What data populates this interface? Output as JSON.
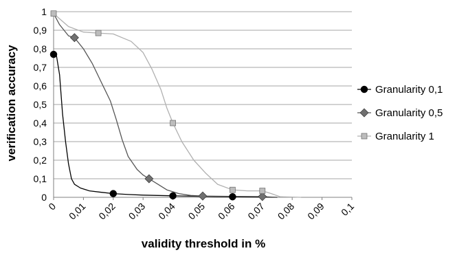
{
  "chart_data": {
    "type": "line",
    "title": "",
    "xlabel": "validity threshold in %",
    "ylabel": "verification accuracy",
    "xlim": [
      0,
      0.1
    ],
    "ylim": [
      0,
      1
    ],
    "x_ticks": [
      "0",
      "0,01",
      "0,02",
      "0,03",
      "0,04",
      "0,05",
      "0,06",
      "0,07",
      "0,08",
      "0,09",
      "0,1"
    ],
    "y_ticks": [
      "0",
      "0,1",
      "0,2",
      "0,3",
      "0,4",
      "0,5",
      "0,6",
      "0,7",
      "0,8",
      "0,9",
      "1"
    ],
    "grid": "horizontal",
    "legend": "right",
    "series": [
      {
        "name": "Granularity 0,1",
        "color": "#000000",
        "marker": "circle",
        "marker_color": "#000000",
        "points": [
          [
            0,
            0.77
          ],
          [
            0.001,
            0.76
          ],
          [
            0.002,
            0.66
          ],
          [
            0.003,
            0.45
          ],
          [
            0.004,
            0.3
          ],
          [
            0.005,
            0.18
          ],
          [
            0.006,
            0.1
          ],
          [
            0.007,
            0.07
          ],
          [
            0.009,
            0.05
          ],
          [
            0.012,
            0.035
          ],
          [
            0.016,
            0.027
          ],
          [
            0.02,
            0.02
          ],
          [
            0.025,
            0.015
          ],
          [
            0.03,
            0.012
          ],
          [
            0.035,
            0.01
          ],
          [
            0.04,
            0.008
          ],
          [
            0.05,
            0.005
          ],
          [
            0.06,
            0.003
          ],
          [
            0.07,
            0.001
          ],
          [
            0.075,
            0
          ]
        ],
        "markers": [
          [
            0,
            0.77
          ],
          [
            0.02,
            0.02
          ],
          [
            0.04,
            0.008
          ],
          [
            0.06,
            0.003
          ]
        ]
      },
      {
        "name": "Granularity 0,5",
        "color": "#555555",
        "marker": "diamond",
        "marker_color": "#707070",
        "points": [
          [
            0,
            0.99
          ],
          [
            0.002,
            0.93
          ],
          [
            0.005,
            0.87
          ],
          [
            0.007,
            0.86
          ],
          [
            0.01,
            0.8
          ],
          [
            0.013,
            0.72
          ],
          [
            0.016,
            0.62
          ],
          [
            0.019,
            0.52
          ],
          [
            0.021,
            0.42
          ],
          [
            0.023,
            0.31
          ],
          [
            0.025,
            0.22
          ],
          [
            0.028,
            0.15
          ],
          [
            0.03,
            0.12
          ],
          [
            0.032,
            0.1
          ],
          [
            0.035,
            0.07
          ],
          [
            0.038,
            0.04
          ],
          [
            0.042,
            0.02
          ],
          [
            0.046,
            0.01
          ],
          [
            0.05,
            0.007
          ],
          [
            0.06,
            0.005
          ],
          [
            0.07,
            0.004
          ],
          [
            0.075,
            0
          ]
        ],
        "markers": [
          [
            0.007,
            0.86
          ],
          [
            0.032,
            0.1
          ],
          [
            0.05,
            0.007
          ],
          [
            0.07,
            0.004
          ]
        ]
      },
      {
        "name": "Granularity 1",
        "color": "#b0b0b0",
        "marker": "square",
        "marker_color": "#bdbdbd",
        "points": [
          [
            0,
            0.99
          ],
          [
            0.005,
            0.92
          ],
          [
            0.01,
            0.89
          ],
          [
            0.015,
            0.885
          ],
          [
            0.02,
            0.88
          ],
          [
            0.023,
            0.86
          ],
          [
            0.026,
            0.84
          ],
          [
            0.03,
            0.78
          ],
          [
            0.033,
            0.69
          ],
          [
            0.036,
            0.58
          ],
          [
            0.038,
            0.48
          ],
          [
            0.04,
            0.4
          ],
          [
            0.043,
            0.3
          ],
          [
            0.047,
            0.2
          ],
          [
            0.051,
            0.13
          ],
          [
            0.055,
            0.07
          ],
          [
            0.06,
            0.04
          ],
          [
            0.065,
            0.035
          ],
          [
            0.07,
            0.035
          ],
          [
            0.073,
            0.02
          ],
          [
            0.076,
            0.003
          ],
          [
            0.083,
            0
          ]
        ],
        "markers": [
          [
            0,
            0.99
          ],
          [
            0.015,
            0.885
          ],
          [
            0.04,
            0.4
          ],
          [
            0.06,
            0.04
          ],
          [
            0.07,
            0.035
          ]
        ]
      }
    ]
  }
}
